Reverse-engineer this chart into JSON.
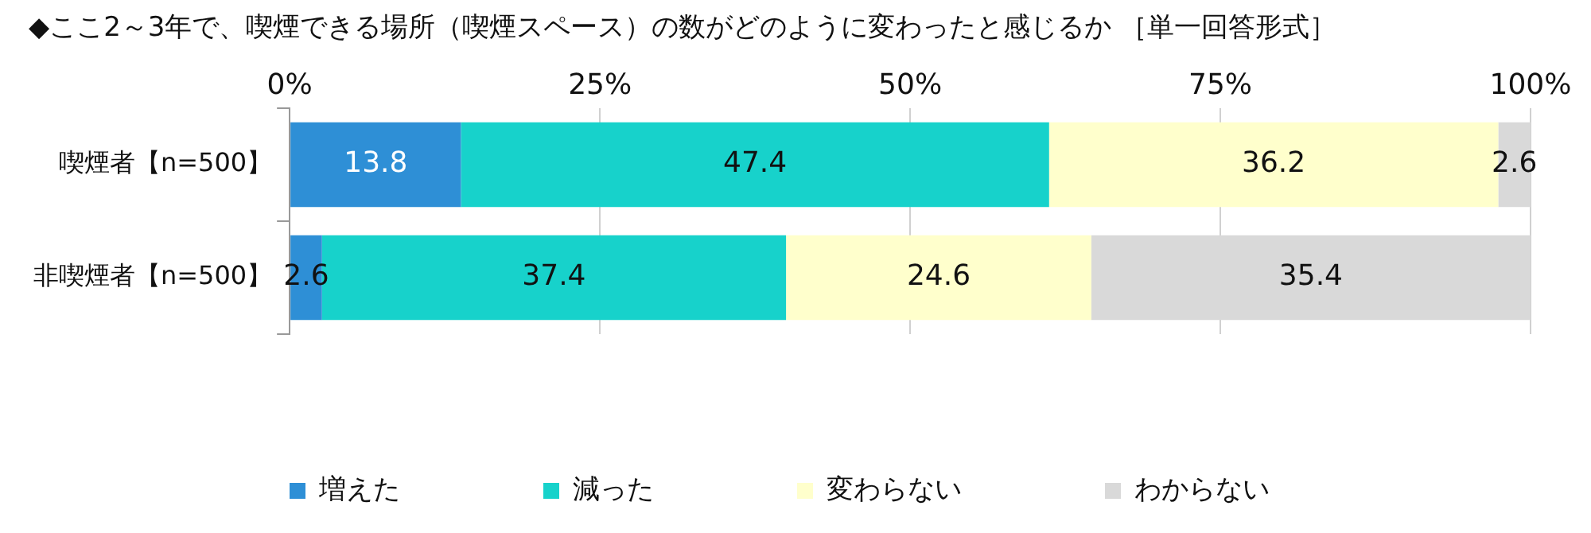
{
  "chart_data": {
    "type": "bar",
    "orientation": "horizontal",
    "stacked": true,
    "title": "◆ここ2～3年で、喫煙できる場所（喫煙スペース）の数がどのように変わったと感じるか ［単一回答形式］",
    "categories": [
      "喫煙者【n=500】",
      "非喫煙者【n=500】"
    ],
    "series": [
      {
        "name": "増えた",
        "color": "#2e8fd6",
        "values": [
          13.8,
          2.6
        ]
      },
      {
        "name": "減った",
        "color": "#17d2cb",
        "values": [
          47.4,
          37.4
        ]
      },
      {
        "name": "変わらない",
        "color": "#ffffcc",
        "values": [
          36.2,
          24.6
        ]
      },
      {
        "name": "わからない",
        "color": "#d9d9d9",
        "values": [
          2.6,
          35.4
        ]
      }
    ],
    "xlim": [
      0,
      100
    ],
    "xticks": [
      {
        "value": 0,
        "label": "0%"
      },
      {
        "value": 25,
        "label": "25%"
      },
      {
        "value": 50,
        "label": "50%"
      },
      {
        "value": 75,
        "label": "75%"
      },
      {
        "value": 100,
        "label": "100%"
      }
    ],
    "grid": "x",
    "legend": "bottom",
    "data_labels": true
  }
}
